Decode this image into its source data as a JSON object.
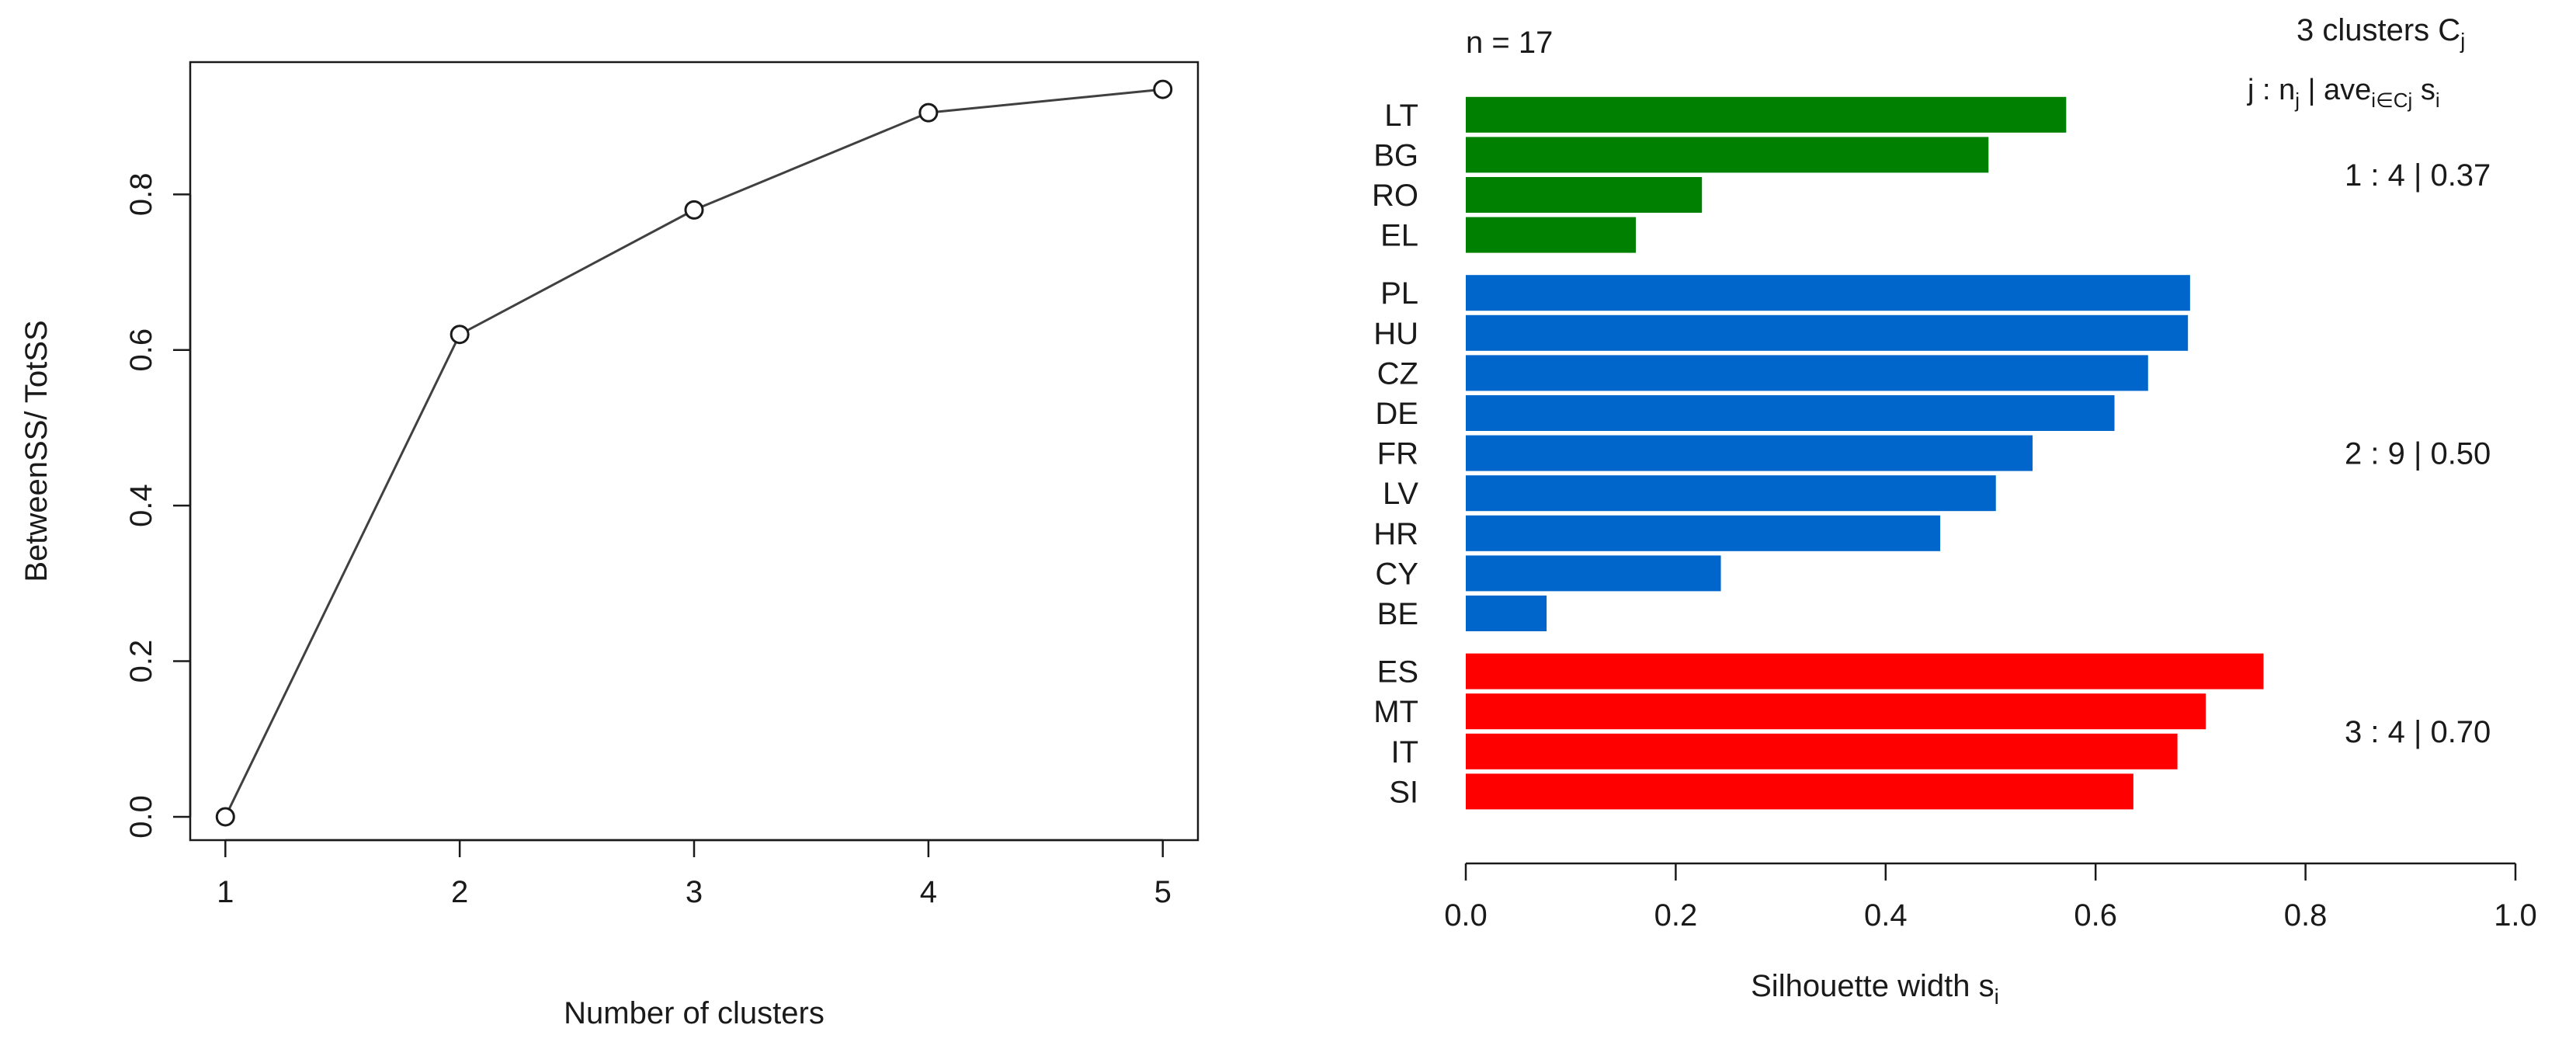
{
  "chart_data": [
    {
      "type": "line",
      "title": "",
      "xlabel": "Number of clusters",
      "ylabel": "BetweenSS/ TotSS",
      "x": [
        1,
        2,
        3,
        4,
        5
      ],
      "values": [
        0.0,
        0.62,
        0.78,
        0.905,
        0.935
      ],
      "xlim": [
        0.85,
        5.15
      ],
      "ylim": [
        -0.03,
        0.97
      ],
      "xticks": [
        "1",
        "2",
        "3",
        "4",
        "5"
      ],
      "yticks": [
        "0.0",
        "0.2",
        "0.4",
        "0.6",
        "0.8"
      ],
      "marker": "open-circle",
      "grid": false
    },
    {
      "type": "bar",
      "orientation": "horizontal",
      "title": "n = 17",
      "xlabel_main": "Silhouette width s",
      "xlabel_sub": "i",
      "xlim": [
        0,
        1
      ],
      "xticks": [
        "0.0",
        "0.2",
        "0.4",
        "0.6",
        "0.8",
        "1.0"
      ],
      "legend_title": "3  clusters  C",
      "legend_title_sub": "j",
      "legend_header": {
        "part1": "j :  n",
        "sub1": "j",
        "part2": " | ave",
        "sub2": "i∈Cj",
        "part3": "  s",
        "sub3": "i"
      },
      "clusters": [
        {
          "id": 1,
          "color": "#008000",
          "summary": "1 :   4  |  0.37",
          "labels": [
            "LT",
            "BG",
            "RO",
            "EL"
          ],
          "values": [
            0.572,
            0.498,
            0.225,
            0.162
          ]
        },
        {
          "id": 2,
          "color": "#0066cc",
          "summary": "2 :   9  |  0.50",
          "labels": [
            "PL",
            "HU",
            "CZ",
            "DE",
            "FR",
            "LV",
            "HR",
            "CY",
            "BE"
          ],
          "values": [
            0.69,
            0.688,
            0.65,
            0.618,
            0.54,
            0.505,
            0.452,
            0.243,
            0.077
          ]
        },
        {
          "id": 3,
          "color": "#ff0000",
          "summary": "3 :   4  |  0.70",
          "labels": [
            "ES",
            "MT",
            "IT",
            "SI"
          ],
          "values": [
            0.76,
            0.705,
            0.678,
            0.636
          ]
        }
      ]
    }
  ]
}
